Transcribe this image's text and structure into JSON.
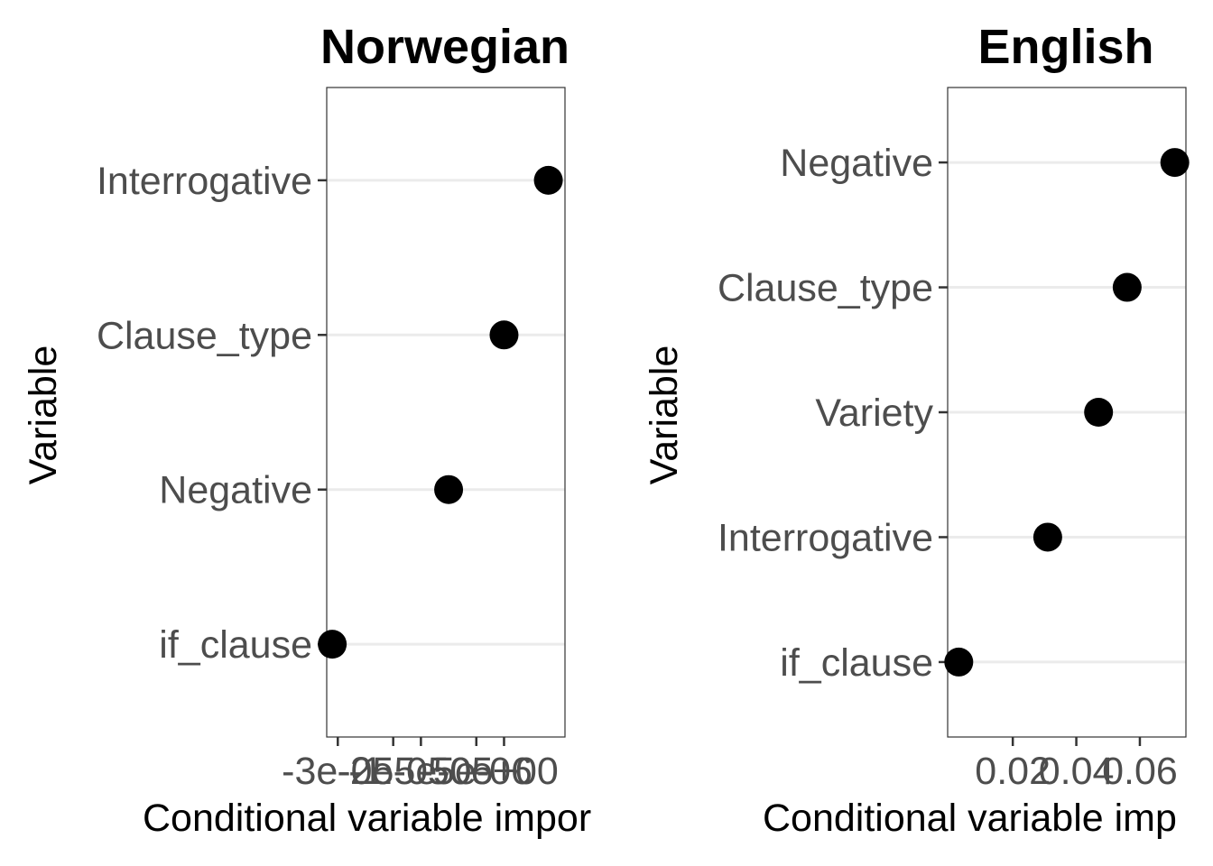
{
  "chart_data": [
    {
      "type": "scatter",
      "title": "Norwegian",
      "ylabel": "Variable",
      "xlabel": "Conditional variable impor",
      "categories": [
        "if_clause",
        "Negative",
        "Clause_type",
        "Interrogative"
      ],
      "values": [
        -3.1e-05,
        -1e-05,
        0.0,
        8e-06
      ],
      "x_ticks": [
        -3e-05,
        -2e-05,
        -1.5e-05,
        -5e-06,
        0.0
      ],
      "x_tick_labels": [
        "-3e-05",
        "-2e-05",
        "-1.5e-05",
        "-5e-06",
        "0e+00"
      ],
      "xlim": [
        -3.2e-05,
        1.1e-05
      ],
      "grid": true,
      "legend": "none"
    },
    {
      "type": "scatter",
      "title": "English",
      "ylabel": "Variable",
      "xlabel": "Conditional variable imp",
      "categories": [
        "if_clause",
        "Interrogative",
        "Variety",
        "Clause_type",
        "Negative"
      ],
      "values": [
        0.003,
        0.031,
        0.047,
        0.056,
        0.071
      ],
      "x_ticks": [
        0.02,
        0.04,
        0.06
      ],
      "x_tick_labels": [
        "0.02",
        "0.04",
        "0.06"
      ],
      "xlim": [
        -0.0005,
        0.0745
      ],
      "grid": true,
      "legend": "none"
    }
  ]
}
